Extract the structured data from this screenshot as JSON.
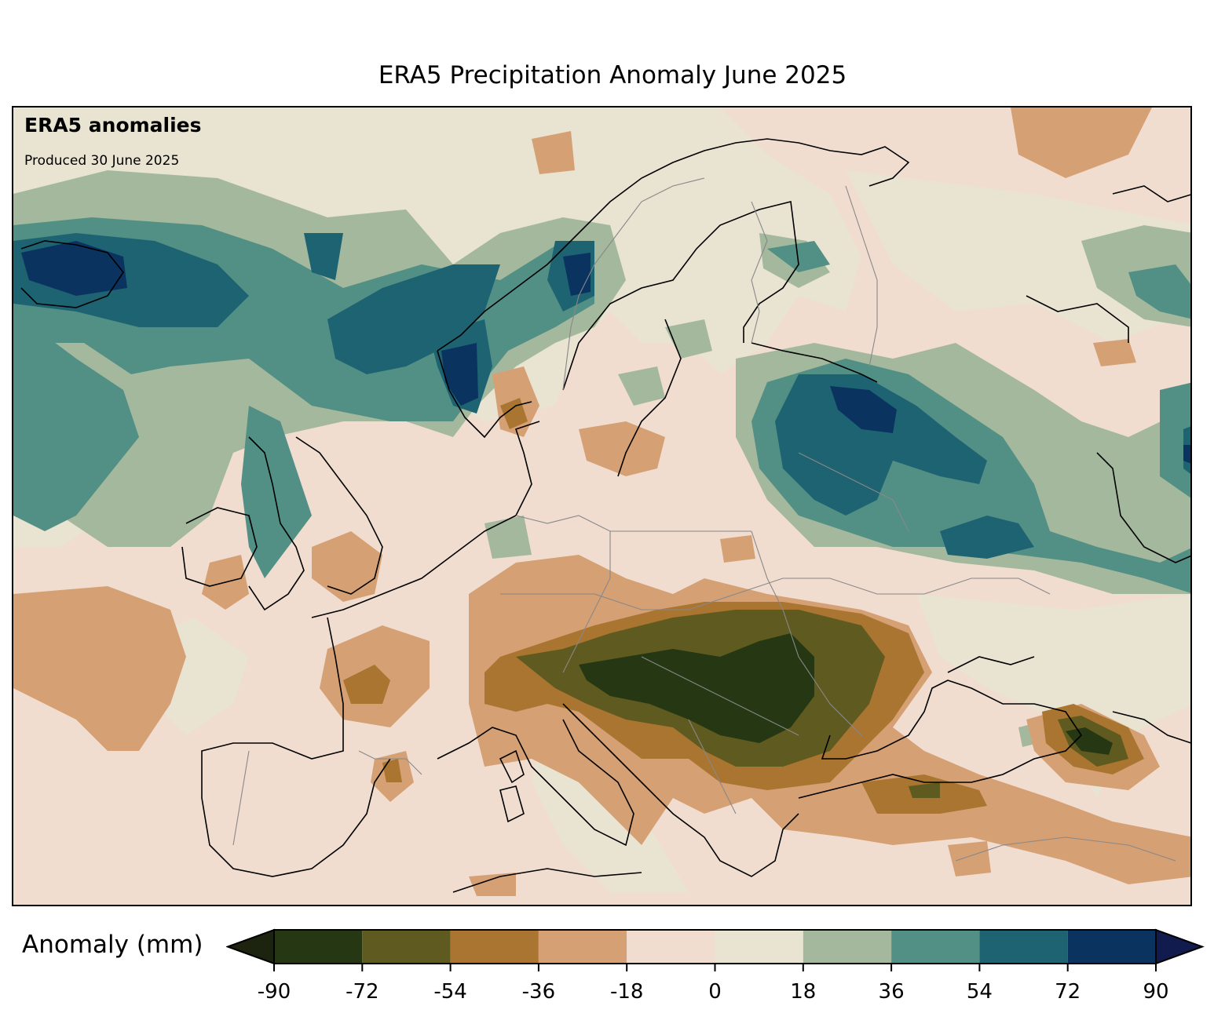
{
  "title": "ERA5 Precipitation Anomaly June 2025",
  "overlay": {
    "source_label": "ERA5 anomalies",
    "produced": "Produced 30 June 2025"
  },
  "colorbar": {
    "label": "Anomaly (mm)",
    "ticks": [
      "-90",
      "-72",
      "-54",
      "-36",
      "-18",
      "0",
      "18",
      "36",
      "54",
      "72",
      "90"
    ],
    "bins": [
      {
        "range": [
          -90,
          -72
        ],
        "color": "#263713"
      },
      {
        "range": [
          -72,
          -54
        ],
        "color": "#5f5a1f"
      },
      {
        "range": [
          -54,
          -36
        ],
        "color": "#a97531"
      },
      {
        "range": [
          -36,
          -18
        ],
        "color": "#d5a074"
      },
      {
        "range": [
          -18,
          0
        ],
        "color": "#f0ddd0"
      },
      {
        "range": [
          0,
          18
        ],
        "color": "#e9e3d2"
      },
      {
        "range": [
          18,
          36
        ],
        "color": "#a3b89c"
      },
      {
        "range": [
          36,
          54
        ],
        "color": "#528f85"
      },
      {
        "range": [
          54,
          72
        ],
        "color": "#1d6372"
      },
      {
        "range": [
          72,
          90
        ],
        "color": "#0b3360"
      }
    ],
    "under_color": "#1c2410",
    "over_color": "#111b4d"
  }
}
